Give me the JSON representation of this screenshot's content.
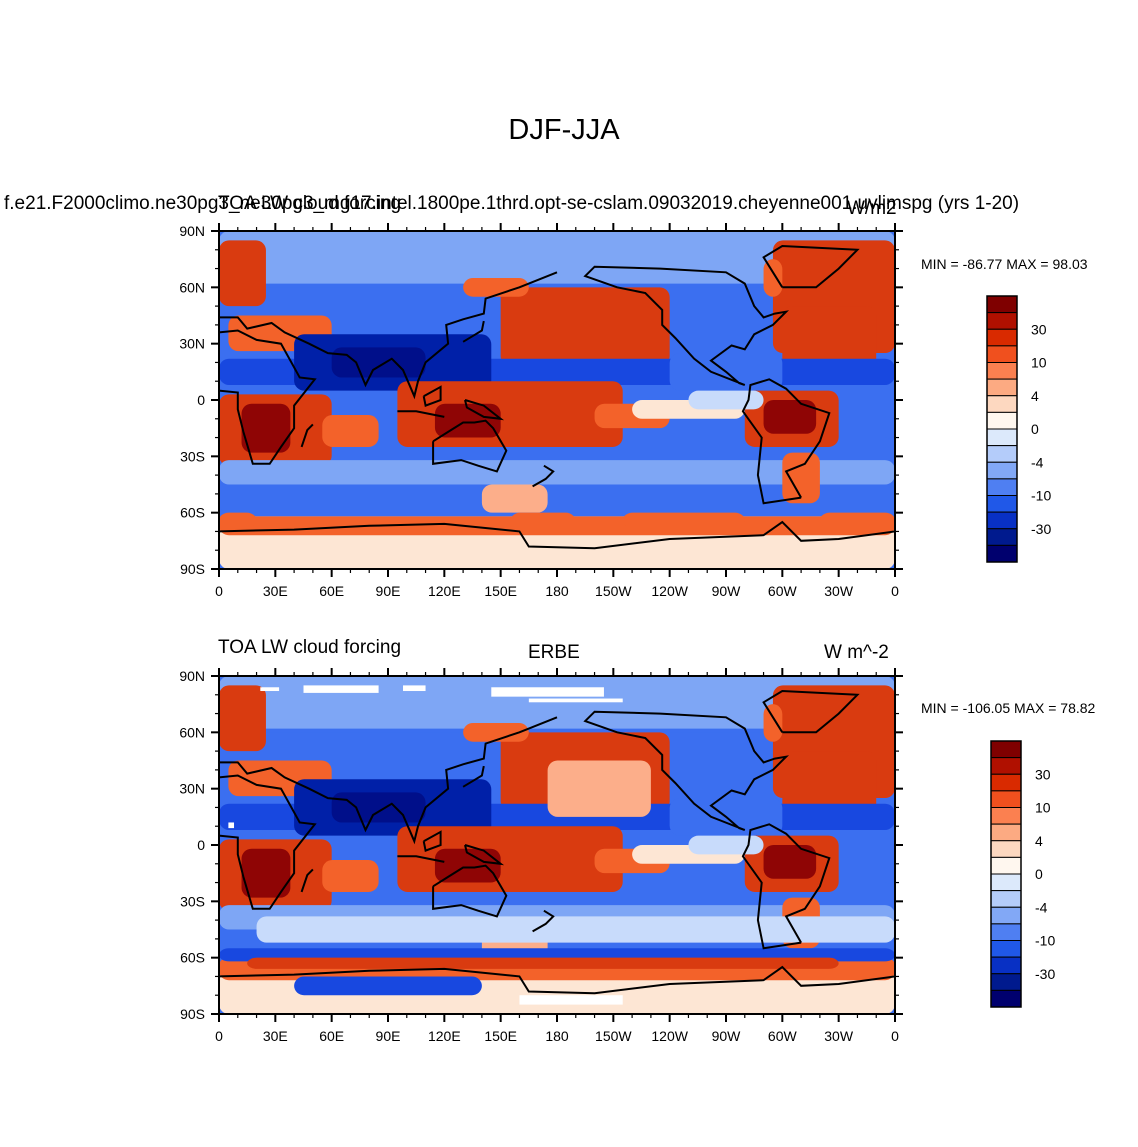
{
  "figure_title": "DJF-JJA",
  "chart_data": [
    {
      "type": "heatmap",
      "title": "TOA LW cloud forcing",
      "case_name": "f.e21.F2000climo.ne30pg3_ne30pg3_mg17.intel.1800pe.1thrd.opt-se-cslam.09032019.cheyenne001.uvlimspg (yrs 1-20)",
      "units": "W/m2",
      "stats_text": "MIN = -86.77 MAX =  98.03",
      "min": -86.77,
      "max": 98.03,
      "x_ticks": [
        "0",
        "30E",
        "60E",
        "90E",
        "120E",
        "150E",
        "180",
        "150W",
        "120W",
        "90W",
        "60W",
        "30W",
        "0"
      ],
      "y_ticks": [
        "90N",
        "60N",
        "30N",
        "0",
        "30S",
        "60S",
        "90S"
      ],
      "colorbar_levels": [
        -40,
        -30,
        -20,
        -10,
        -6,
        -4,
        -2,
        0,
        2,
        4,
        6,
        10,
        20,
        30,
        40
      ],
      "colorbar_labels": [
        "30",
        "10",
        "4",
        "0",
        "-4",
        "-10",
        "-30"
      ]
    },
    {
      "type": "heatmap",
      "title": "TOA LW cloud forcing",
      "case_name": "ERBE",
      "units": "W m^-2",
      "stats_text": "MIN = -106.05 MAX =  78.82",
      "min": -106.05,
      "max": 78.82,
      "x_ticks": [
        "0",
        "30E",
        "60E",
        "90E",
        "120E",
        "150E",
        "180",
        "150W",
        "120W",
        "90W",
        "60W",
        "30W",
        "0"
      ],
      "y_ticks": [
        "90N",
        "60N",
        "30N",
        "0",
        "30S",
        "60S",
        "90S"
      ],
      "colorbar_levels": [
        -40,
        -30,
        -20,
        -10,
        -6,
        -4,
        -2,
        0,
        2,
        4,
        6,
        10,
        20,
        30,
        40
      ],
      "colorbar_labels": [
        "30",
        "10",
        "4",
        "0",
        "-4",
        "-10",
        "-30"
      ]
    }
  ],
  "colorbar_colors": [
    "#7f0000",
    "#b01000",
    "#d92a00",
    "#f0501e",
    "#fb8050",
    "#fcaa82",
    "#fdd8c0",
    "#fff7ef",
    "#dce9fb",
    "#b4ccfa",
    "#82a8f6",
    "#4f7ff2",
    "#2058e8",
    "#0830c4",
    "#001a8e",
    "#00006e"
  ],
  "map_colors": {
    "deep_red": "#8f0505",
    "red": "#d93b10",
    "orange": "#f3622a",
    "salmon": "#fcae8a",
    "cream": "#fde6d4",
    "pale_blue": "#c8dbfb",
    "light_blue": "#7ea6f5",
    "blue": "#3b6ff0",
    "mid_blue": "#1848e0",
    "dark_blue": "#0020a8",
    "navy": "#000f8a",
    "coast": "#000000"
  }
}
